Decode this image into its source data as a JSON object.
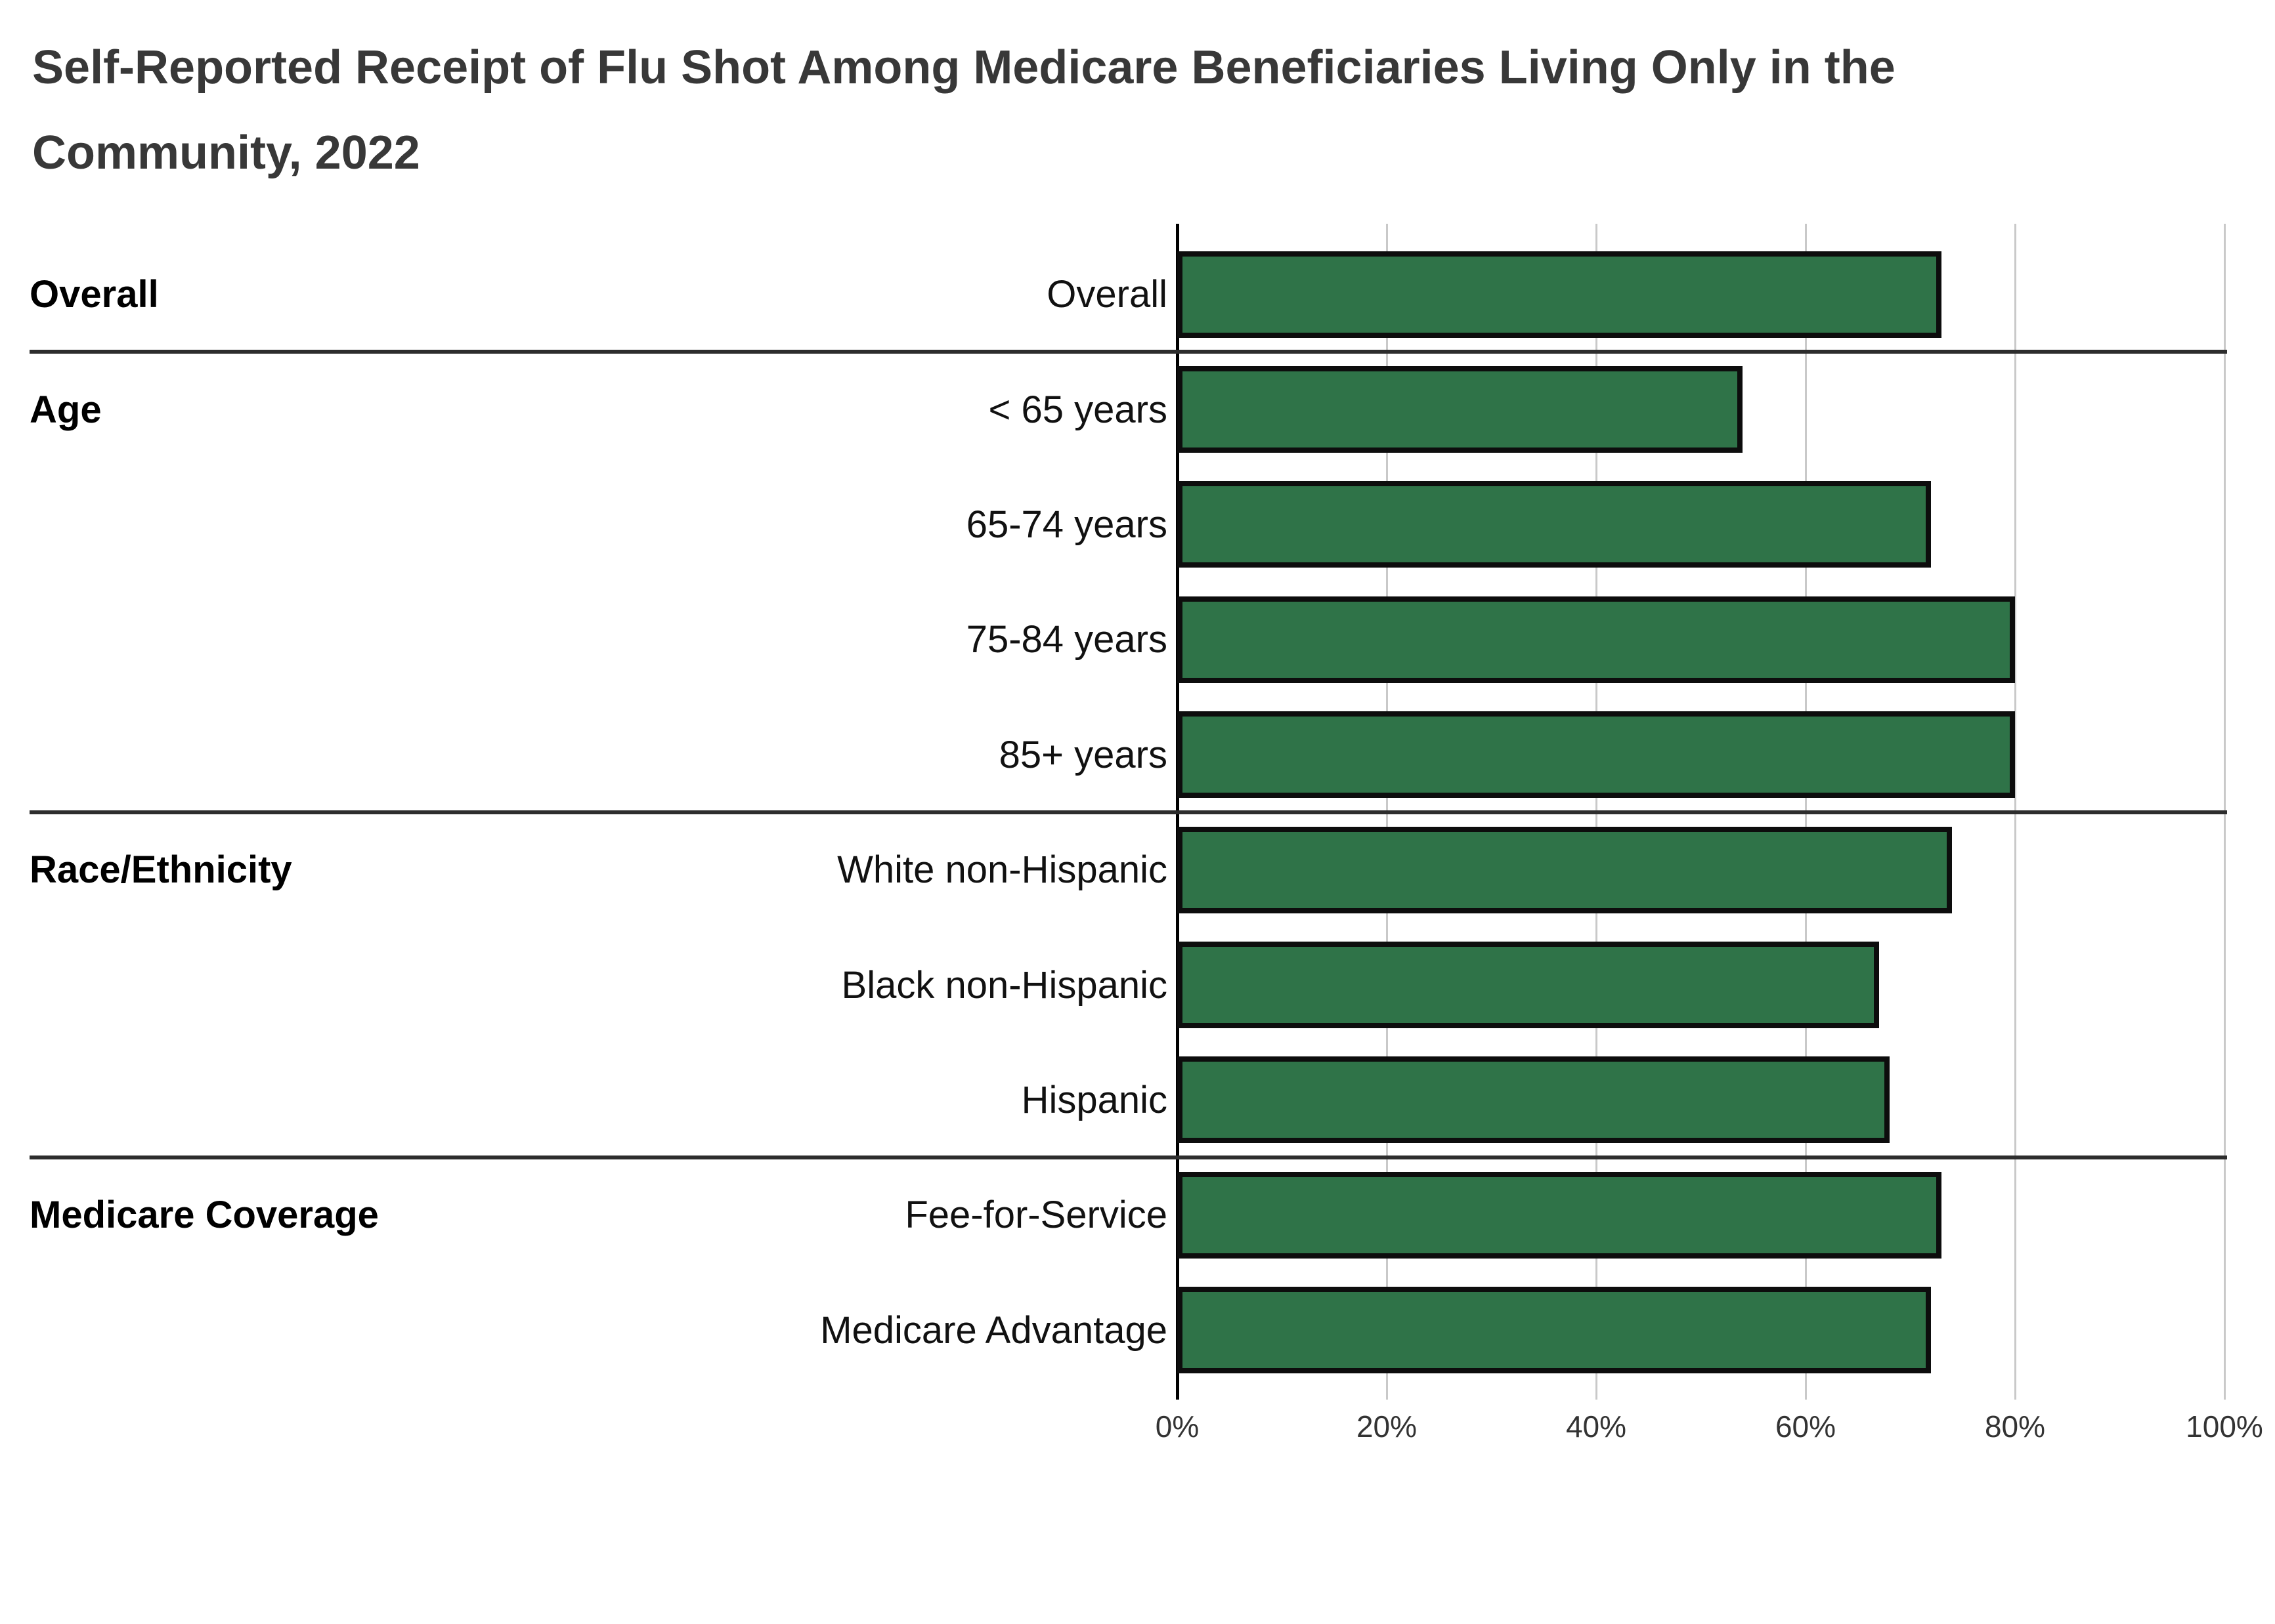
{
  "title": {
    "line1": "Self-Reported Receipt of Flu Shot Among Medicare Beneficiaries Living Only in the",
    "line2": "Community, 2022"
  },
  "chart_data": {
    "type": "bar",
    "orientation": "horizontal",
    "title": "Self-Reported Receipt of Flu Shot Among Medicare Beneficiaries Living Only in the Community, 2022",
    "unit": "%",
    "groups": [
      {
        "label": "Overall",
        "rows": [
          {
            "category": "Overall",
            "value": 73
          }
        ]
      },
      {
        "label": "Age",
        "rows": [
          {
            "category": "< 65 years",
            "value": 54
          },
          {
            "category": "65-74 years",
            "value": 72
          },
          {
            "category": "75-84 years",
            "value": 80
          },
          {
            "category": "85+ years",
            "value": 80
          }
        ]
      },
      {
        "label": "Race/Ethnicity",
        "rows": [
          {
            "category": "White non-Hispanic",
            "value": 74
          },
          {
            "category": "Black non-Hispanic",
            "value": 67
          },
          {
            "category": "Hispanic",
            "value": 68
          }
        ]
      },
      {
        "label": "Medicare Coverage",
        "rows": [
          {
            "category": "Fee-for-Service",
            "value": 73
          },
          {
            "category": "Medicare Advantage",
            "value": 72
          }
        ]
      }
    ],
    "x_axis": {
      "min": 0,
      "max": 100,
      "ticks": [
        "0%",
        "20%",
        "40%",
        "60%",
        "80%",
        "100%"
      ],
      "gridlines": true
    },
    "legend": "none"
  },
  "colors": {
    "bar_fill": "#2f7348",
    "bar_border": "#0d0d0d",
    "gridline": "#c9c9c9",
    "axis_line": "#000000",
    "separator": "#2d2d2d",
    "title_text": "#383838",
    "group_label_text": "#000000",
    "category_label_text": "#111111",
    "tick_text": "#333333",
    "background": "#ffffff"
  }
}
